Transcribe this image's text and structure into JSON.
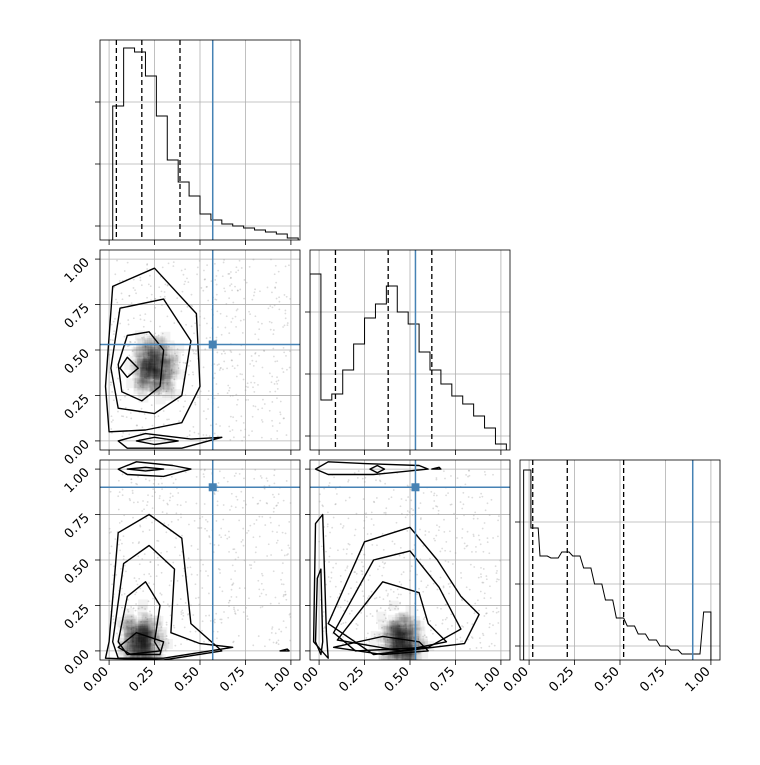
{
  "chart_data": {
    "type": "corner",
    "grid": true,
    "truth_color": "#4682b4",
    "tick_labels": [
      "0.00",
      "0.25",
      "0.50",
      "0.75",
      "1.00"
    ],
    "params": [
      {
        "range": [
          -0.05,
          1.05
        ],
        "truth": 0.57,
        "quantiles": [
          0.04,
          0.18,
          0.39
        ],
        "hist": [
          {
            "x": 0.05,
            "y": 0.67
          },
          {
            "x": 0.11,
            "y": 0.96
          },
          {
            "x": 0.17,
            "y": 0.94
          },
          {
            "x": 0.23,
            "y": 0.82
          },
          {
            "x": 0.29,
            "y": 0.62
          },
          {
            "x": 0.35,
            "y": 0.4
          },
          {
            "x": 0.41,
            "y": 0.29
          },
          {
            "x": 0.47,
            "y": 0.22
          },
          {
            "x": 0.53,
            "y": 0.13
          },
          {
            "x": 0.59,
            "y": 0.1
          },
          {
            "x": 0.65,
            "y": 0.08
          },
          {
            "x": 0.71,
            "y": 0.07
          },
          {
            "x": 0.77,
            "y": 0.06
          },
          {
            "x": 0.83,
            "y": 0.05
          },
          {
            "x": 0.89,
            "y": 0.04
          },
          {
            "x": 0.95,
            "y": 0.03
          },
          {
            "x": 1.01,
            "y": 0.01
          }
        ]
      },
      {
        "range": [
          -0.05,
          1.05
        ],
        "truth": 0.53,
        "quantiles": [
          0.09,
          0.38,
          0.62
        ],
        "hist": [
          {
            "x": -0.02,
            "y": 0.88
          },
          {
            "x": 0.04,
            "y": 0.25
          },
          {
            "x": 0.1,
            "y": 0.28
          },
          {
            "x": 0.16,
            "y": 0.4
          },
          {
            "x": 0.22,
            "y": 0.53
          },
          {
            "x": 0.28,
            "y": 0.66
          },
          {
            "x": 0.34,
            "y": 0.73
          },
          {
            "x": 0.4,
            "y": 0.82
          },
          {
            "x": 0.46,
            "y": 0.69
          },
          {
            "x": 0.52,
            "y": 0.63
          },
          {
            "x": 0.58,
            "y": 0.49
          },
          {
            "x": 0.64,
            "y": 0.4
          },
          {
            "x": 0.7,
            "y": 0.33
          },
          {
            "x": 0.76,
            "y": 0.27
          },
          {
            "x": 0.82,
            "y": 0.23
          },
          {
            "x": 0.88,
            "y": 0.17
          },
          {
            "x": 0.94,
            "y": 0.11
          },
          {
            "x": 1.0,
            "y": 0.03
          }
        ]
      },
      {
        "range": [
          -0.05,
          1.05
        ],
        "truth": 0.9,
        "quantiles": [
          0.02,
          0.21,
          0.52
        ],
        "hist": [
          {
            "x": -0.01,
            "y": 0.95
          },
          {
            "x": 0.03,
            "y": 0.66
          },
          {
            "x": 0.08,
            "y": 0.52
          },
          {
            "x": 0.14,
            "y": 0.51
          },
          {
            "x": 0.2,
            "y": 0.54
          },
          {
            "x": 0.26,
            "y": 0.52
          },
          {
            "x": 0.32,
            "y": 0.46
          },
          {
            "x": 0.38,
            "y": 0.38
          },
          {
            "x": 0.44,
            "y": 0.3
          },
          {
            "x": 0.5,
            "y": 0.21
          },
          {
            "x": 0.56,
            "y": 0.17
          },
          {
            "x": 0.62,
            "y": 0.13
          },
          {
            "x": 0.68,
            "y": 0.1
          },
          {
            "x": 0.74,
            "y": 0.07
          },
          {
            "x": 0.8,
            "y": 0.05
          },
          {
            "x": 0.86,
            "y": 0.03
          },
          {
            "x": 0.92,
            "y": 0.03
          },
          {
            "x": 0.98,
            "y": 0.24
          }
        ]
      }
    ],
    "pairs": [
      {
        "x": 0,
        "y": 1,
        "density_peak": [
          0.25,
          0.4
        ],
        "contours": [
          [
            [
              0.05,
              0.42
            ],
            [
              0.1,
              0.58
            ],
            [
              0.22,
              0.6
            ],
            [
              0.3,
              0.5
            ],
            [
              0.28,
              0.3
            ],
            [
              0.18,
              0.22
            ],
            [
              0.07,
              0.27
            ]
          ],
          [
            [
              0.01,
              0.4
            ],
            [
              0.06,
              0.73
            ],
            [
              0.3,
              0.78
            ],
            [
              0.45,
              0.55
            ],
            [
              0.4,
              0.25
            ],
            [
              0.25,
              0.15
            ],
            [
              0.05,
              0.18
            ]
          ],
          [
            [
              -0.02,
              0.3
            ],
            [
              0.02,
              0.85
            ],
            [
              0.25,
              0.95
            ],
            [
              0.48,
              0.7
            ],
            [
              0.5,
              0.3
            ],
            [
              0.4,
              0.1
            ],
            [
              0.2,
              0.06
            ],
            [
              0.0,
              0.05
            ]
          ],
          [
            [
              0.05,
              0.0
            ],
            [
              0.2,
              0.04
            ],
            [
              0.45,
              0.01
            ],
            [
              0.62,
              0.02
            ],
            [
              0.4,
              -0.04
            ],
            [
              0.1,
              -0.04
            ]
          ],
          [
            [
              0.15,
              0.0
            ],
            [
              0.25,
              0.02
            ],
            [
              0.38,
              0.0
            ],
            [
              0.25,
              -0.02
            ]
          ],
          [
            [
              0.06,
              0.4
            ],
            [
              0.1,
              0.46
            ],
            [
              0.16,
              0.4
            ],
            [
              0.1,
              0.35
            ]
          ]
        ]
      },
      {
        "x": 0,
        "y": 2,
        "density_peak": [
          0.18,
          0.05
        ],
        "contours": [
          [
            [
              0.05,
              0.02
            ],
            [
              0.15,
              0.1
            ],
            [
              0.3,
              0.05
            ],
            [
              0.28,
              -0.02
            ],
            [
              0.12,
              -0.02
            ]
          ],
          [
            [
              0.05,
              0.05
            ],
            [
              0.1,
              0.3
            ],
            [
              0.2,
              0.38
            ],
            [
              0.28,
              0.25
            ],
            [
              0.25,
              0.05
            ],
            [
              0.28,
              0.0
            ],
            [
              0.1,
              -0.02
            ]
          ],
          [
            [
              0.02,
              0.05
            ],
            [
              0.08,
              0.48
            ],
            [
              0.22,
              0.58
            ],
            [
              0.36,
              0.45
            ],
            [
              0.34,
              0.1
            ],
            [
              0.5,
              0.04
            ],
            [
              0.68,
              0.02
            ],
            [
              0.3,
              -0.04
            ],
            [
              0.05,
              -0.04
            ]
          ],
          [
            [
              0.0,
              0.05
            ],
            [
              0.05,
              0.65
            ],
            [
              0.22,
              0.75
            ],
            [
              0.4,
              0.62
            ],
            [
              0.45,
              0.15
            ],
            [
              0.62,
              0.0
            ],
            [
              0.3,
              -0.05
            ],
            [
              -0.02,
              -0.04
            ]
          ],
          [
            [
              0.05,
              1.0
            ],
            [
              0.15,
              1.04
            ],
            [
              0.35,
              1.02
            ],
            [
              0.45,
              1.0
            ],
            [
              0.3,
              0.96
            ],
            [
              0.1,
              0.97
            ]
          ],
          [
            [
              0.1,
              1.0
            ],
            [
              0.2,
              1.01
            ],
            [
              0.3,
              1.0
            ],
            [
              0.2,
              0.99
            ]
          ],
          [
            [
              0.94,
              0.0
            ],
            [
              0.98,
              0.01
            ],
            [
              0.99,
              0.0
            ]
          ]
        ]
      },
      {
        "x": 1,
        "y": 2,
        "density_peak": [
          0.45,
          0.05
        ],
        "contours": [
          [
            [
              -0.02,
              0.05
            ],
            [
              -0.01,
              0.4
            ],
            [
              0.01,
              0.45
            ],
            [
              0.02,
              0.05
            ],
            [
              0.01,
              -0.02
            ]
          ],
          [
            [
              -0.03,
              0.05
            ],
            [
              -0.02,
              0.7
            ],
            [
              0.02,
              0.75
            ],
            [
              0.04,
              0.1
            ],
            [
              0.05,
              -0.04
            ]
          ],
          [
            [
              0.08,
              0.02
            ],
            [
              0.35,
              0.08
            ],
            [
              0.55,
              0.05
            ],
            [
              0.6,
              0.0
            ],
            [
              0.35,
              -0.02
            ]
          ],
          [
            [
              0.1,
              0.06
            ],
            [
              0.35,
              0.38
            ],
            [
              0.55,
              0.32
            ],
            [
              0.6,
              0.15
            ],
            [
              0.7,
              0.05
            ],
            [
              0.45,
              0.0
            ]
          ],
          [
            [
              0.08,
              0.1
            ],
            [
              0.3,
              0.5
            ],
            [
              0.5,
              0.55
            ],
            [
              0.66,
              0.35
            ],
            [
              0.78,
              0.12
            ],
            [
              0.6,
              0.02
            ],
            [
              0.2,
              0.0
            ]
          ],
          [
            [
              0.05,
              0.15
            ],
            [
              0.25,
              0.6
            ],
            [
              0.5,
              0.68
            ],
            [
              0.65,
              0.5
            ],
            [
              0.78,
              0.3
            ],
            [
              0.88,
              0.2
            ],
            [
              0.8,
              0.04
            ],
            [
              0.3,
              -0.02
            ]
          ],
          [
            [
              -0.02,
              1.0
            ],
            [
              0.05,
              1.04
            ],
            [
              0.25,
              1.03
            ],
            [
              0.55,
              1.02
            ],
            [
              0.6,
              1.0
            ],
            [
              0.3,
              0.97
            ],
            [
              0.05,
              0.97
            ]
          ],
          [
            [
              0.28,
              1.0
            ],
            [
              0.32,
              1.02
            ],
            [
              0.36,
              1.0
            ],
            [
              0.32,
              0.98
            ]
          ],
          [
            [
              0.62,
              1.0
            ],
            [
              0.66,
              1.01
            ],
            [
              0.67,
              1.0
            ]
          ]
        ]
      }
    ]
  }
}
